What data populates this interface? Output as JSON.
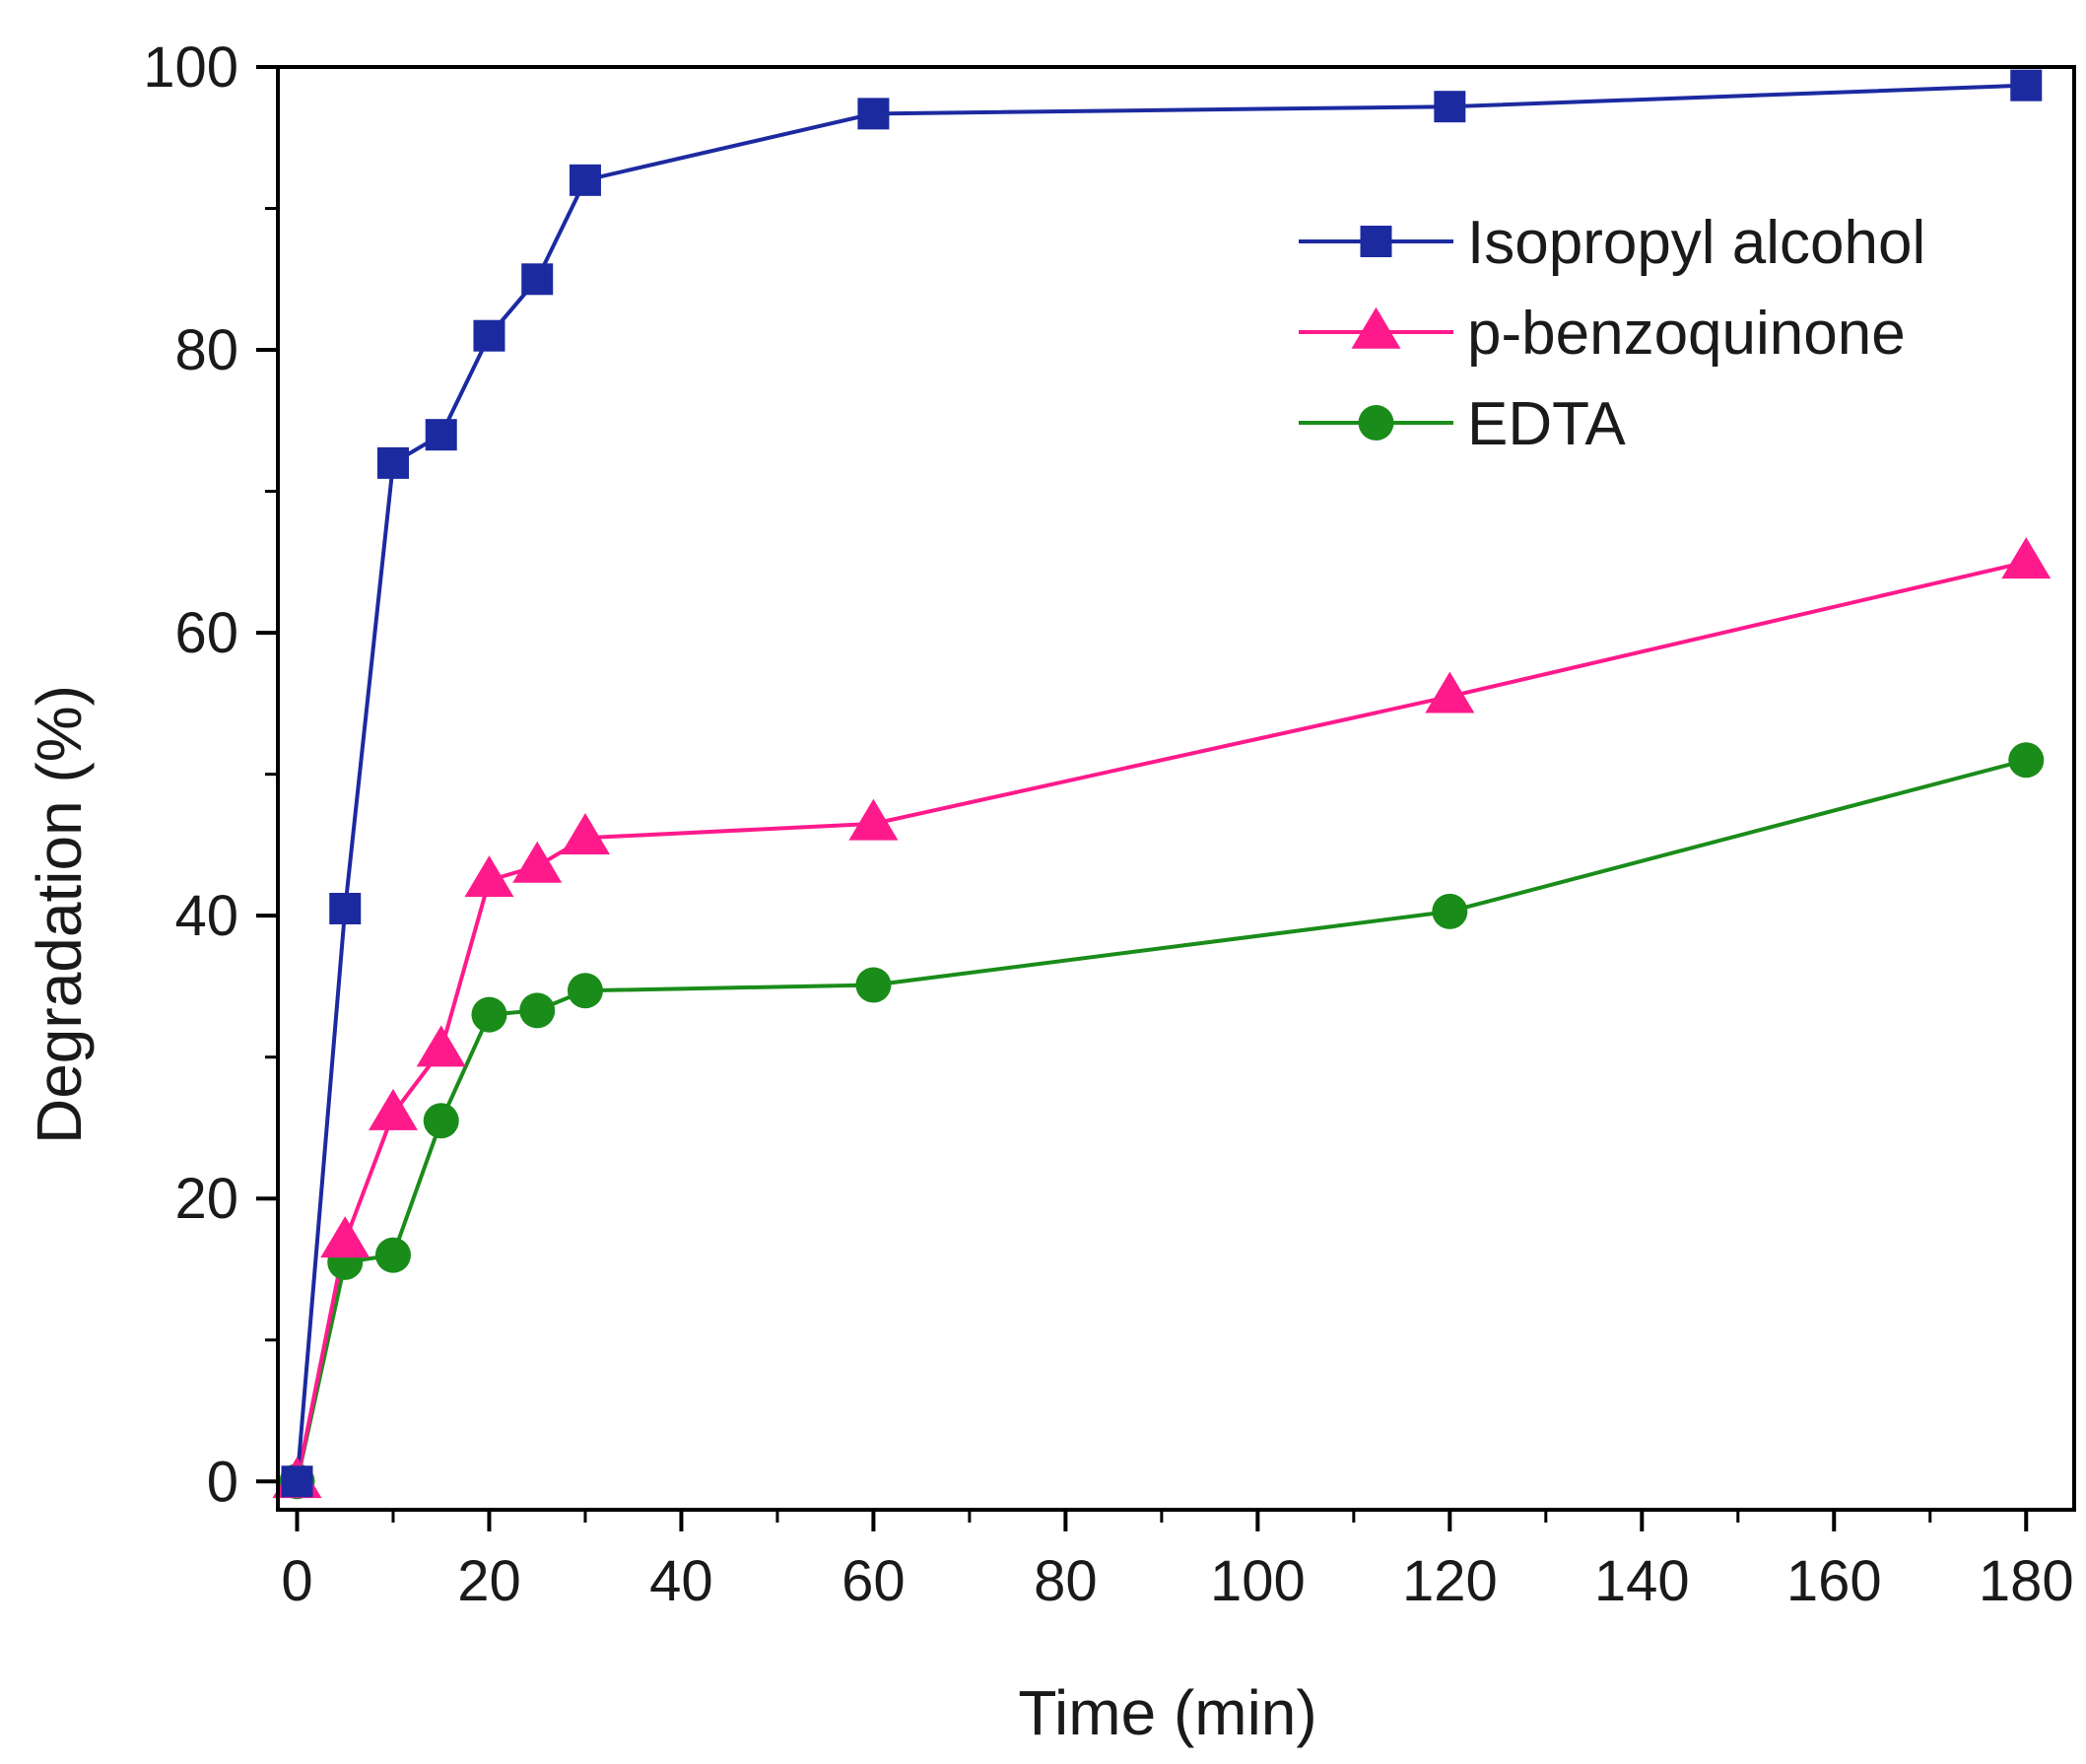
{
  "chart_data": {
    "type": "line",
    "title": "",
    "xlabel": "Time (min)",
    "ylabel": "Degradation (%)",
    "xlim": [
      -2,
      185
    ],
    "ylim": [
      -2,
      100
    ],
    "xticks": [
      0,
      20,
      40,
      60,
      80,
      100,
      120,
      140,
      160,
      180
    ],
    "yticks": [
      0,
      20,
      40,
      60,
      80,
      100
    ],
    "grid": false,
    "legend_position": "top-right",
    "series": [
      {
        "name": "Isopropyl alcohol",
        "color": "#1c2aa0",
        "marker": "square",
        "x": [
          0,
          5,
          10,
          15,
          20,
          25,
          30,
          60,
          120,
          180
        ],
        "y": [
          0,
          40.5,
          72,
          74,
          81,
          85,
          92,
          96.7,
          97.2,
          98.7
        ]
      },
      {
        "name": "p-benzoquinone",
        "color": "#ff1a8c",
        "marker": "triangle",
        "x": [
          0,
          5,
          10,
          15,
          20,
          25,
          30,
          60,
          120,
          180
        ],
        "y": [
          0,
          17,
          26,
          30.5,
          42.5,
          43.5,
          45.5,
          46.5,
          55.5,
          65
        ]
      },
      {
        "name": "EDTA",
        "color": "#1a8c1a",
        "marker": "circle",
        "x": [
          0,
          5,
          10,
          15,
          20,
          25,
          30,
          60,
          120,
          180
        ],
        "y": [
          0,
          15.5,
          16,
          25.5,
          33,
          33.3,
          34.7,
          35.1,
          40.3,
          51
        ]
      }
    ]
  }
}
